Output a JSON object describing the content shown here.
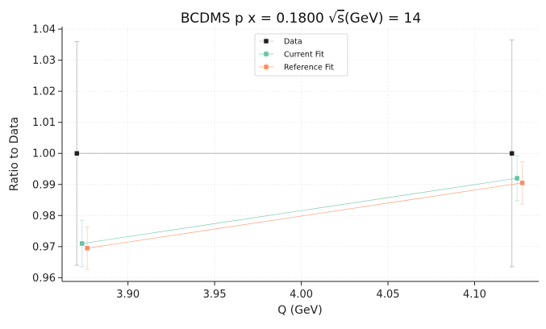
{
  "chart_data": {
    "type": "line",
    "title_prefix": "BCDMS p x = 0.1800 ",
    "title_sqrt": "s",
    "title_suffix": "(GeV) = 14",
    "xlabel": "Q (GeV)",
    "ylabel": "Ratio to Data",
    "xlim": [
      3.862,
      4.137
    ],
    "ylim": [
      0.9588,
      1.0408
    ],
    "xticks": [
      3.9,
      3.95,
      4.0,
      4.05,
      4.1
    ],
    "xtick_labels": [
      "3.90",
      "3.95",
      "4.00",
      "4.05",
      "4.10"
    ],
    "yticks": [
      0.96,
      0.97,
      0.98,
      0.99,
      1.0,
      1.01,
      1.02,
      1.03,
      1.04
    ],
    "ytick_labels": [
      "0.96",
      "0.97",
      "0.98",
      "0.99",
      "1.00",
      "1.01",
      "1.02",
      "1.03",
      "1.04"
    ],
    "grid": true,
    "legend_position": "top-center",
    "series": [
      {
        "name": "Data",
        "color": "#222222",
        "line_color": "#bbbbbb",
        "x": [
          3.8705,
          4.1215
        ],
        "y": [
          1.0,
          1.0
        ],
        "yerr": [
          0.036,
          0.0365
        ]
      },
      {
        "name": "Current Fit",
        "color": "#66c2a5",
        "line_color": "#66c2a5",
        "x": [
          3.8735,
          4.1245
        ],
        "y": [
          0.971,
          0.992
        ],
        "yerr": [
          0.0075,
          0.0072
        ]
      },
      {
        "name": "Reference Fit",
        "color": "#fc8d62",
        "line_color": "#fc8d62",
        "x": [
          3.8765,
          4.1275
        ],
        "y": [
          0.9695,
          0.9905
        ],
        "yerr": [
          0.0068,
          0.0068
        ]
      }
    ]
  }
}
